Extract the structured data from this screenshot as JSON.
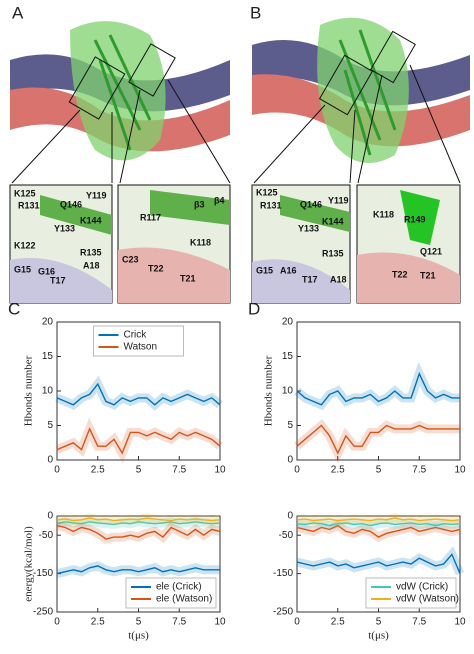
{
  "panels": [
    {
      "label": "A",
      "left_inset": [
        "K125",
        "R131",
        "Q146",
        "Y119",
        "K144",
        "Y133",
        "K122",
        "R135",
        "G15",
        "G16",
        "T17",
        "A18"
      ],
      "right_inset": [
        "R117",
        "β3",
        "β4",
        "K118",
        "C23",
        "T22",
        "T21"
      ]
    },
    {
      "label": "B",
      "left_inset": [
        "K125",
        "R131",
        "Q146",
        "Y119",
        "K144",
        "Y133",
        "R135",
        "G15",
        "A16",
        "T17",
        "A18"
      ],
      "right_inset": [
        "K118",
        "R149",
        "Q121",
        "T22",
        "T21"
      ]
    }
  ],
  "chart_data": [
    {
      "type": "line",
      "panel": "C",
      "ylabel": "Hbonds number",
      "legend": "upper center",
      "x": [
        0,
        0.5,
        1,
        1.5,
        2,
        2.5,
        3,
        3.5,
        4,
        4.5,
        5,
        5.5,
        6,
        6.5,
        7,
        7.5,
        8,
        8.5,
        9,
        9.5,
        10
      ],
      "xlim": [
        0,
        10
      ],
      "xticks": [
        0,
        2.5,
        5,
        7.5,
        10
      ],
      "ylim": [
        0,
        20
      ],
      "yticks": [
        0,
        5,
        10,
        15,
        20
      ],
      "series": [
        {
          "name": "Crick",
          "color": "#0072bd",
          "values": [
            9,
            8.5,
            8,
            9,
            9.5,
            11,
            8.5,
            8,
            9,
            8.5,
            9,
            9,
            8,
            9,
            8.5,
            9,
            9.5,
            9,
            8.5,
            9,
            8
          ]
        },
        {
          "name": "Watson",
          "color": "#d95319",
          "values": [
            1.5,
            2,
            2.5,
            1.5,
            4.5,
            2,
            2,
            3,
            1,
            4,
            4,
            3.5,
            4,
            3.5,
            3,
            4,
            3.5,
            4,
            3.5,
            3,
            2
          ]
        }
      ]
    },
    {
      "type": "line",
      "panel": "D",
      "ylabel": "Hbonds number",
      "x": [
        0,
        0.5,
        1,
        1.5,
        2,
        2.5,
        3,
        3.5,
        4,
        4.5,
        5,
        5.5,
        6,
        6.5,
        7,
        7.5,
        8,
        8.5,
        9,
        9.5,
        10
      ],
      "xlim": [
        0,
        10
      ],
      "xticks": [
        0,
        2.5,
        5,
        7.5,
        10
      ],
      "ylim": [
        0,
        20
      ],
      "yticks": [
        0,
        5,
        10,
        15,
        20
      ],
      "series": [
        {
          "color": "#0072bd",
          "values": [
            10,
            9,
            8.5,
            8,
            9.5,
            10,
            8.5,
            9,
            9,
            9.5,
            8.5,
            9,
            10,
            9,
            9,
            12.5,
            10,
            9,
            9.5,
            9,
            9
          ]
        },
        {
          "color": "#d95319",
          "values": [
            2,
            3,
            4,
            5,
            3.5,
            1,
            3.5,
            2,
            2,
            4,
            4,
            5,
            4.5,
            4.5,
            4.5,
            5,
            4.5,
            4.5,
            4.5,
            4.5,
            4.5
          ]
        }
      ]
    },
    {
      "type": "line",
      "ylabel": "energy(kcal/mol)",
      "xlabel": "t(μs)",
      "legend": "lower right",
      "x": [
        0,
        0.5,
        1,
        1.5,
        2,
        2.5,
        3,
        3.5,
        4,
        4.5,
        5,
        5.5,
        6,
        6.5,
        7,
        7.5,
        8,
        8.5,
        9,
        9.5,
        10
      ],
      "xlim": [
        0,
        10
      ],
      "xticks": [
        0,
        2.5,
        5,
        7.5,
        10
      ],
      "ylim": [
        -250,
        0
      ],
      "yticks": [
        -250,
        -150,
        -50,
        0
      ],
      "series": [
        {
          "color": "#3cc8c0",
          "values": [
            -20,
            -15,
            -18,
            -20,
            -15,
            -18,
            -20,
            -22,
            -18,
            -20,
            -15,
            -18,
            -20,
            -18,
            -15,
            -20,
            -18,
            -15,
            -18,
            -20,
            -18
          ]
        },
        {
          "color": "#edb120",
          "values": [
            -10,
            -8,
            -12,
            -10,
            -5,
            -10,
            -8,
            -12,
            -10,
            -8,
            -10,
            -5,
            -8,
            -10,
            -12,
            -8,
            -10,
            -8,
            -10,
            -12,
            -10
          ]
        },
        {
          "name": "ele (Crick)",
          "color": "#0072bd",
          "values": [
            -150,
            -145,
            -140,
            -145,
            -135,
            -130,
            -140,
            -145,
            -140,
            -140,
            -145,
            -140,
            -135,
            -145,
            -140,
            -145,
            -140,
            -135,
            -140,
            -140,
            -140
          ]
        },
        {
          "name": "ele (Watson)",
          "color": "#d95319",
          "values": [
            -25,
            -30,
            -40,
            -30,
            -35,
            -45,
            -60,
            -55,
            -55,
            -50,
            -55,
            -45,
            -40,
            -55,
            -30,
            -40,
            -50,
            -35,
            -50,
            -35,
            -40
          ]
        }
      ]
    },
    {
      "type": "line",
      "xlabel": "t(μs)",
      "legend": "lower right",
      "x": [
        0,
        0.5,
        1,
        1.5,
        2,
        2.5,
        3,
        3.5,
        4,
        4.5,
        5,
        5.5,
        6,
        6.5,
        7,
        7.5,
        8,
        8.5,
        9,
        9.5,
        10
      ],
      "xlim": [
        0,
        10
      ],
      "xticks": [
        0,
        2.5,
        5,
        7.5,
        10
      ],
      "ylim": [
        -250,
        0
      ],
      "yticks": [
        -250,
        -150,
        -50,
        0
      ],
      "series": [
        {
          "color": "#0072bd",
          "values": [
            -120,
            -125,
            -130,
            -125,
            -120,
            -130,
            -125,
            -135,
            -130,
            -125,
            -120,
            -130,
            -125,
            -120,
            -125,
            -110,
            -120,
            -130,
            -125,
            -100,
            -150
          ]
        },
        {
          "color": "#d95319",
          "values": [
            -30,
            -35,
            -40,
            -30,
            -35,
            -25,
            -40,
            -45,
            -35,
            -40,
            -55,
            -45,
            -40,
            -35,
            -30,
            -40,
            -35,
            -30,
            -35,
            -40,
            -35
          ]
        },
        {
          "name": "vdW (Crick)",
          "color": "#3cc8c0",
          "values": [
            -20,
            -22,
            -18,
            -20,
            -25,
            -20,
            -18,
            -22,
            -20,
            -25,
            -20,
            -18,
            -22,
            -20,
            -18,
            -22,
            -20,
            -25,
            -20,
            -22,
            -20
          ]
        },
        {
          "name": "vdW (Watson)",
          "color": "#edb120",
          "values": [
            -10,
            -8,
            -12,
            -10,
            -8,
            -12,
            -10,
            -8,
            -10,
            -12,
            -8,
            -10,
            -5,
            -10,
            -8,
            -12,
            -10,
            -8,
            -10,
            -12,
            -10
          ]
        }
      ]
    }
  ]
}
